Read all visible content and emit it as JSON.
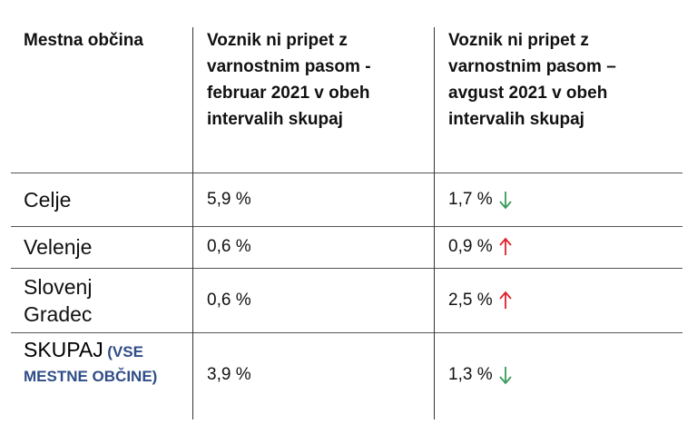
{
  "table": {
    "header": [
      "Mestna občina",
      "Voznik ni pripet z varnostnim pasom - februar 2021 v obeh intervalih skupaj",
      "Voznik ni pripet z varnostnim pasom – avgust 2021 v obeh intervalih skupaj"
    ],
    "rows": [
      [
        "Celje",
        "5,9 %",
        "1,7 %"
      ],
      [
        "Velenje",
        "0,6 %",
        "0,9 %"
      ],
      [
        "Slovenj Gradec",
        "0,6 %",
        "2,5 %"
      ],
      [
        "SKUPAJ",
        "3,9 %",
        "1,3 %"
      ]
    ],
    "total_note": "(VSE MESTNE OBČINE)"
  }
}
